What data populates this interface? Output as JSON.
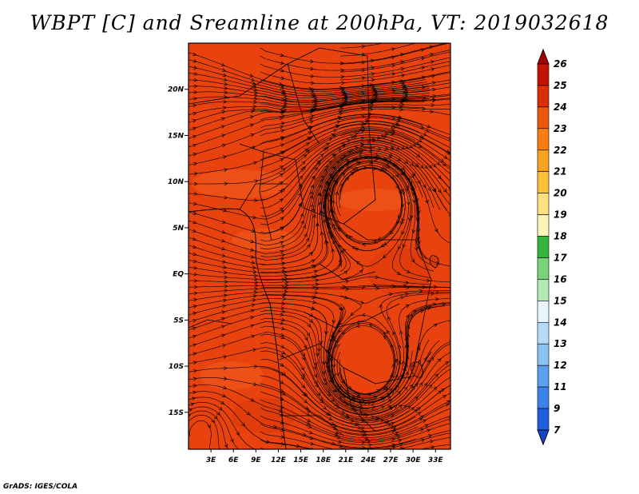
{
  "title": "WBPT [C] and Sreamline at 200hPa, VT: 2019032618",
  "credit": "GrADS: IGES/COLA",
  "map": {
    "field": "WBPT",
    "unit": "C",
    "level": "200hPa",
    "valid_time": "2019032618",
    "dominant_shading": "#e8420f",
    "lat_range": [
      -19,
      25
    ],
    "lon_range": [
      0,
      35
    ],
    "y_ticks": [
      "20N",
      "15N",
      "10N",
      "5N",
      "EQ",
      "5S",
      "10S",
      "15S"
    ],
    "x_ticks": [
      "3E",
      "6E",
      "9E",
      "12E",
      "15E",
      "18E",
      "21E",
      "24E",
      "27E",
      "30E",
      "33E"
    ],
    "gyres": [
      {
        "lon": 24,
        "lat": 9.5,
        "type": "cyclonic"
      },
      {
        "lon": 23.5,
        "lat": -11.5,
        "type": "anticyclonic"
      },
      {
        "lon": 2,
        "lat": -15.5,
        "type": "cyclonic"
      }
    ]
  },
  "colorbar": {
    "labels": [
      "26",
      "25",
      "24",
      "23",
      "22",
      "21",
      "20",
      "19",
      "18",
      "17",
      "16",
      "15",
      "14",
      "13",
      "12",
      "11",
      "9",
      "7"
    ],
    "colors": [
      "#a50000",
      "#c31400",
      "#dc2d05",
      "#ee560c",
      "#fa7d10",
      "#fba21f",
      "#fdc03b",
      "#fee080",
      "#fef5b5",
      "#37b43c",
      "#78d278",
      "#b4ebb4",
      "#e6f5fa",
      "#b4dcfa",
      "#8cc3f5",
      "#5aa0f0",
      "#3c82eb",
      "#1e5fdc",
      "#1446c8"
    ]
  }
}
